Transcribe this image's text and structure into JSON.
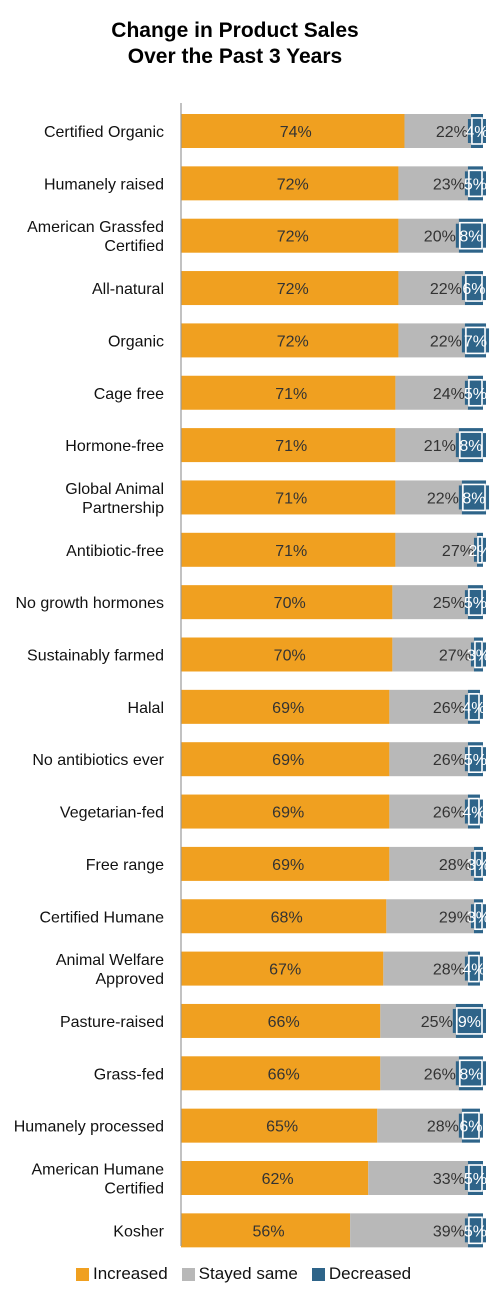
{
  "chart_data": {
    "type": "bar",
    "orientation": "horizontal",
    "stacked": true,
    "title": "Change in Product Sales Over the Past 3 Years",
    "title_lines": [
      "Change in Product Sales",
      "Over the Past 3 Years"
    ],
    "categories": [
      [
        "Certified Organic"
      ],
      [
        "Humanely raised"
      ],
      [
        "American Grassfed",
        "Certified"
      ],
      [
        "All-natural"
      ],
      [
        "Organic"
      ],
      [
        "Cage free"
      ],
      [
        "Hormone-free"
      ],
      [
        "Global Animal",
        "Partnership"
      ],
      [
        "Antibiotic-free"
      ],
      [
        "No growth hormones"
      ],
      [
        "Sustainably farmed"
      ],
      [
        "Halal"
      ],
      [
        "No antibiotics ever"
      ],
      [
        "Vegetarian-fed"
      ],
      [
        "Free range"
      ],
      [
        "Certified Humane"
      ],
      [
        "Animal Welfare",
        "Approved"
      ],
      [
        "Pasture-raised"
      ],
      [
        "Grass-fed"
      ],
      [
        "Humanely processed"
      ],
      [
        "American Humane",
        "Certified"
      ],
      [
        "Kosher"
      ]
    ],
    "series": [
      {
        "name": "Increased",
        "color": "#F0A020",
        "values": [
          74,
          72,
          72,
          72,
          72,
          71,
          71,
          71,
          71,
          70,
          70,
          69,
          69,
          69,
          69,
          68,
          67,
          66,
          66,
          65,
          62,
          56
        ]
      },
      {
        "name": "Stayed same",
        "color": "#B8B8B8",
        "values": [
          22,
          23,
          20,
          22,
          22,
          24,
          21,
          22,
          27,
          25,
          27,
          26,
          26,
          26,
          28,
          29,
          28,
          25,
          26,
          28,
          33,
          39
        ]
      },
      {
        "name": "Decreased",
        "color": "#2E6489",
        "values": [
          4,
          5,
          8,
          6,
          7,
          5,
          8,
          8,
          2,
          5,
          3,
          4,
          5,
          4,
          3,
          3,
          4,
          9,
          8,
          6,
          5,
          5
        ]
      }
    ],
    "value_suffix": "%",
    "xlim": [
      0,
      100
    ],
    "legend_position": "bottom",
    "grid": false
  }
}
